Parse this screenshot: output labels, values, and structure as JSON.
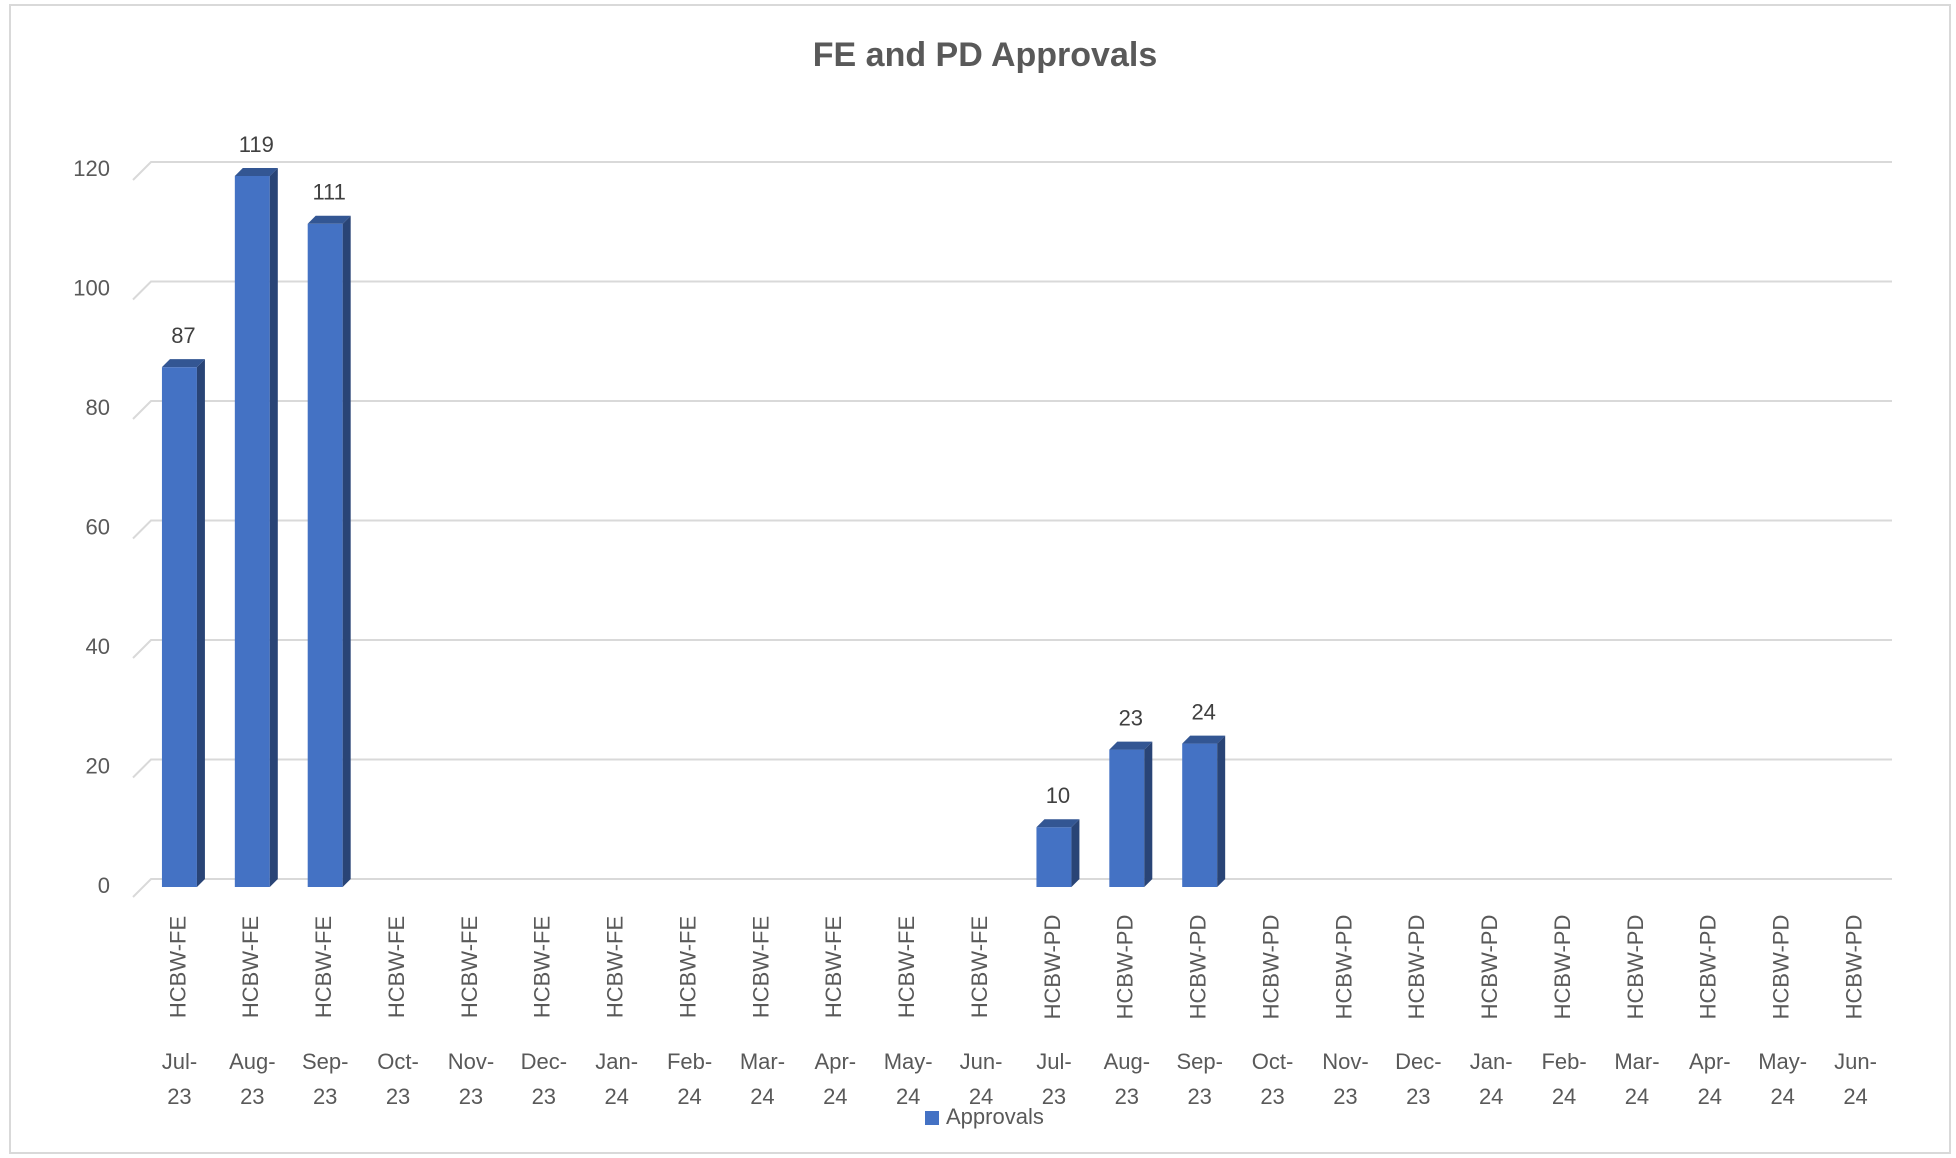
{
  "chart_data": {
    "type": "bar",
    "title": "FE and PD Approvals",
    "categories": [
      "Jul-23",
      "Aug-23",
      "Sep-23",
      "Oct-23",
      "Nov-23",
      "Dec-23",
      "Jan-24",
      "Feb-24",
      "Mar-24",
      "Apr-24",
      "May-24",
      "Jun-24",
      "Jul-23",
      "Aug-23",
      "Sep-23",
      "Oct-23",
      "Nov-23",
      "Dec-23",
      "Jan-24",
      "Feb-24",
      "Mar-24",
      "Apr-24",
      "May-24",
      "Jun-24"
    ],
    "subcategories": [
      "HCBW-FE",
      "HCBW-FE",
      "HCBW-FE",
      "HCBW-FE",
      "HCBW-FE",
      "HCBW-FE",
      "HCBW-FE",
      "HCBW-FE",
      "HCBW-FE",
      "HCBW-FE",
      "HCBW-FE",
      "HCBW-FE",
      "HCBW-PD",
      "HCBW-PD",
      "HCBW-PD",
      "HCBW-PD",
      "HCBW-PD",
      "HCBW-PD",
      "HCBW-PD",
      "HCBW-PD",
      "HCBW-PD",
      "HCBW-PD",
      "HCBW-PD",
      "HCBW-PD"
    ],
    "series": [
      {
        "name": "Approvals",
        "color": "#4472c4",
        "values": [
          87,
          119,
          111,
          null,
          null,
          null,
          null,
          null,
          null,
          null,
          null,
          null,
          10,
          23,
          24,
          null,
          null,
          null,
          null,
          null,
          null,
          null,
          null,
          null
        ]
      }
    ],
    "ylim": [
      0,
      120
    ],
    "yticks": [
      0,
      20,
      40,
      60,
      80,
      100,
      120
    ],
    "grid": true,
    "legend": "bottom"
  }
}
